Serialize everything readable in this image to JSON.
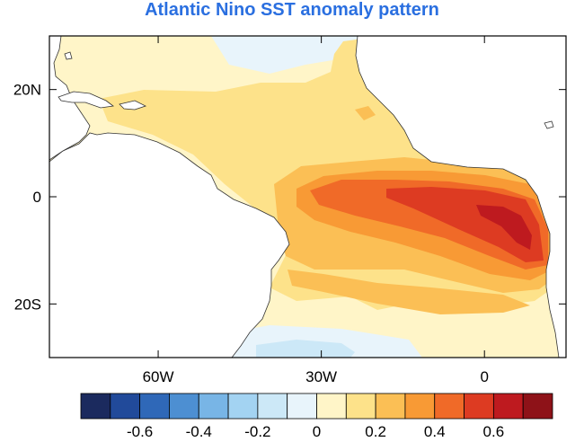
{
  "title": "Atlantic Nino SST anomaly pattern",
  "map": {
    "projection": "lat-lon",
    "lon_range": [
      -80,
      15
    ],
    "lat_range": [
      -30,
      30
    ],
    "lon_ticks": [
      {
        "value": -60,
        "label": "60W"
      },
      {
        "value": -30,
        "label": "30W"
      },
      {
        "value": 0,
        "label": "0"
      }
    ],
    "lat_ticks": [
      {
        "value": 20,
        "label": "20N"
      },
      {
        "value": 0,
        "label": "0"
      },
      {
        "value": -20,
        "label": "20S"
      }
    ],
    "land_color": "#ffffff",
    "coastline_color": "#333333"
  },
  "colorbar": {
    "colors": [
      "#1b2a5e",
      "#214a9a",
      "#2f68b8",
      "#4d8fd2",
      "#78b5e6",
      "#a3d3f2",
      "#cce8f7",
      "#e8f4fb",
      "#fff5c8",
      "#fde28a",
      "#fbbf55",
      "#f89a35",
      "#f06a28",
      "#dd3b22",
      "#be1a1f",
      "#8e1218"
    ],
    "labels": [
      {
        "index": 2,
        "text": "-0.6"
      },
      {
        "index": 4,
        "text": "-0.4"
      },
      {
        "index": 6,
        "text": "-0.2"
      },
      {
        "index": 8,
        "text": "0"
      },
      {
        "index": 10,
        "text": "0.2"
      },
      {
        "index": 12,
        "text": "0.4"
      },
      {
        "index": 14,
        "text": "0.6"
      }
    ]
  }
}
